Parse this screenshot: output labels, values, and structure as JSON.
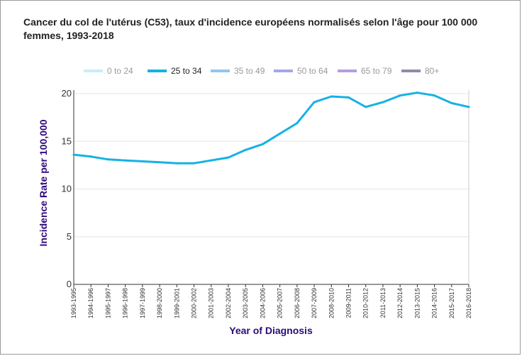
{
  "chart_data": {
    "type": "line",
    "title": "Cancer du col de l'utérus (C53), taux d'incidence européens normalisés selon l'âge pour 100 000 femmes, 1993-2018",
    "xlabel": "Year of Diagnosis",
    "ylabel": "Incidence Rate per 100,000",
    "ylim": [
      0,
      20
    ],
    "yticks": [
      0,
      5,
      10,
      15,
      20
    ],
    "grid": true,
    "legend_position": "top",
    "categories": [
      "1993-1995",
      "1994-1996",
      "1995-1997",
      "1996-1998",
      "1997-1999",
      "1998-2000",
      "1999-2001",
      "2000-2002",
      "2001-2003",
      "2002-2004",
      "2003-2005",
      "2004-2006",
      "2005-2007",
      "2006-2008",
      "2007-2009",
      "2008-2010",
      "2009-2011",
      "2010-2012",
      "2011-2013",
      "2012-2014",
      "2013-2015",
      "2014-2016",
      "2015-2017",
      "2016-2018"
    ],
    "legend": [
      {
        "name": "0 to 24",
        "color": "#c8eef8",
        "active": false
      },
      {
        "name": "25 to 34",
        "color": "#15b2e5",
        "active": true
      },
      {
        "name": "35 to 49",
        "color": "#92c6ee",
        "active": false
      },
      {
        "name": "50 to 64",
        "color": "#a3a8e6",
        "active": false
      },
      {
        "name": "65 to 79",
        "color": "#b59ee0",
        "active": false
      },
      {
        "name": "80+",
        "color": "#938aa3",
        "active": false
      }
    ],
    "series": [
      {
        "name": "25 to 34",
        "color": "#15b2e5",
        "values": [
          13.6,
          13.4,
          13.1,
          13.0,
          12.9,
          12.8,
          12.7,
          12.7,
          13.0,
          13.3,
          14.1,
          14.7,
          15.8,
          16.9,
          19.1,
          19.7,
          19.6,
          18.6,
          19.1,
          19.8,
          20.1,
          19.8,
          19.0,
          18.6
        ]
      }
    ]
  }
}
